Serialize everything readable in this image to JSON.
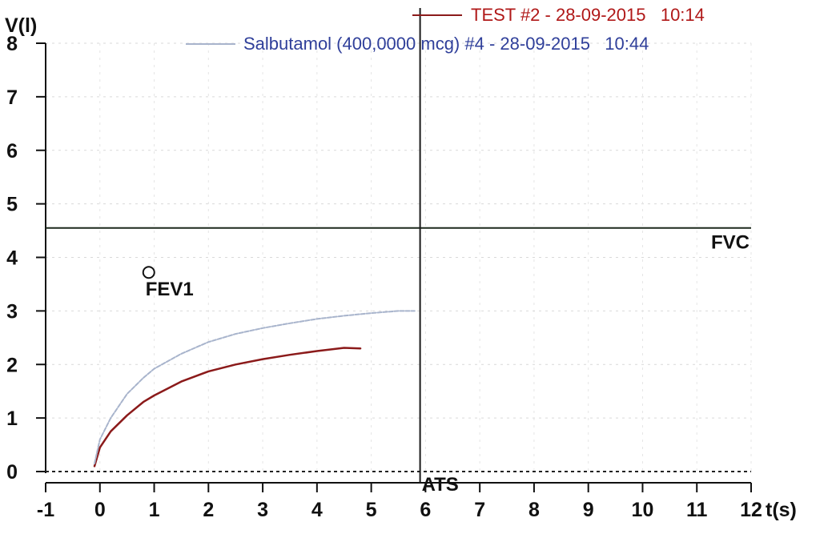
{
  "chart_data": {
    "type": "line",
    "ylabel": "V(l)",
    "xlabel": "t(s)",
    "xlim": [
      -1,
      12
    ],
    "ylim": [
      0,
      8
    ],
    "x_ticks": [
      "-1",
      "0",
      "1",
      "2",
      "3",
      "4",
      "5",
      "6",
      "7",
      "8",
      "9",
      "10",
      "11",
      "12"
    ],
    "y_ticks": [
      "0",
      "1",
      "2",
      "3",
      "4",
      "5",
      "6",
      "7",
      "8"
    ],
    "grid": true,
    "legend_position": "top-right",
    "series": [
      {
        "name": "TEST #2 - 28-09-2015   10:14",
        "color": "#8b1a1a",
        "legend_color": "#b01818",
        "x": [
          -0.1,
          0.0,
          0.2,
          0.5,
          0.8,
          1.0,
          1.5,
          2.0,
          2.5,
          3.0,
          3.5,
          4.0,
          4.5,
          4.8
        ],
        "y": [
          0.1,
          0.45,
          0.75,
          1.05,
          1.3,
          1.42,
          1.68,
          1.87,
          2.0,
          2.1,
          2.18,
          2.25,
          2.31,
          2.3
        ]
      },
      {
        "name": "Salbutamol (400,0000 mcg) #4 - 28-09-2015   10:44",
        "color": "#a8b4cc",
        "legend_color": "#2f3f9a",
        "x": [
          -0.1,
          0.0,
          0.2,
          0.5,
          0.8,
          1.0,
          1.5,
          2.0,
          2.5,
          3.0,
          3.5,
          4.0,
          4.5,
          5.0,
          5.5,
          5.8
        ],
        "y": [
          0.15,
          0.6,
          1.0,
          1.45,
          1.75,
          1.92,
          2.2,
          2.42,
          2.57,
          2.68,
          2.77,
          2.85,
          2.91,
          2.96,
          3.0,
          3.0
        ]
      }
    ],
    "reference_lines": {
      "fvc": {
        "y": 4.55,
        "label": "FVC"
      },
      "ats": {
        "x": 5.9,
        "label": "ATS"
      }
    },
    "markers": [
      {
        "label": "FEV1",
        "x": 0.9,
        "y": 3.72
      }
    ]
  }
}
